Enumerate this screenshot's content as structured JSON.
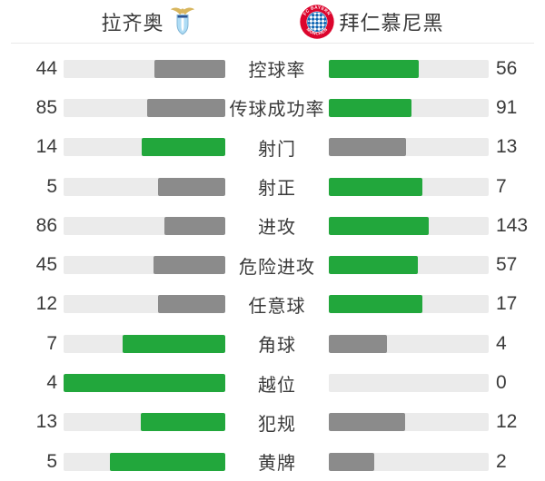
{
  "header": {
    "home": {
      "name": "拉齐奥"
    },
    "away": {
      "name": "拜仁慕尼黑",
      "logo_text_top": "FC BAYERN",
      "logo_text_bottom": "MÜNCHEN"
    }
  },
  "colors": {
    "win_green": "#22a73c",
    "lose_gray": "#8b8b8b",
    "bar_track": "#ebebeb",
    "text": "#3a3a3a",
    "divider": "#e9e9e9",
    "bayern_red": "#dc052d",
    "bayern_blue": "#0a63b2",
    "lazio_shield_blue": "#aedcf5",
    "lazio_gold": "#d8b65e"
  },
  "chart_data": {
    "type": "bar",
    "orientation": "horizontal-paired",
    "categories": [
      "控球率",
      "传球成功率",
      "射门",
      "射正",
      "进攻",
      "危险进攻",
      "任意球",
      "角球",
      "越位",
      "犯规",
      "黄牌"
    ],
    "series": [
      {
        "name": "拉齐奥",
        "values": [
          44,
          85,
          14,
          5,
          86,
          45,
          12,
          7,
          4,
          13,
          5
        ]
      },
      {
        "name": "拜仁慕尼黑",
        "values": [
          56,
          91,
          13,
          7,
          143,
          57,
          17,
          4,
          0,
          12,
          2
        ]
      }
    ],
    "title": "",
    "legend_position": "top",
    "grid": false,
    "fill_rule": "fill length = value / (home+away) of row; higher value green, lower gray; home bar anchored to center (grows leftward), away bar grows rightward"
  }
}
